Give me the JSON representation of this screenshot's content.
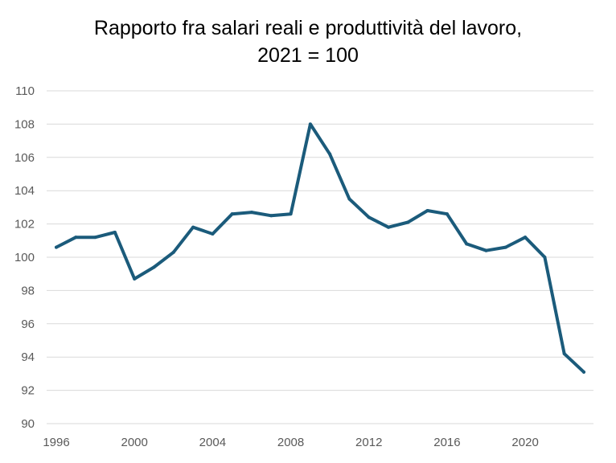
{
  "chart_data": {
    "type": "line",
    "title_lines": [
      "Rapporto fra salari reali e produttività del lavoro,",
      "2021 = 100"
    ],
    "xlabel": "",
    "ylabel": "",
    "xlim": [
      1996,
      2023
    ],
    "ylim": [
      90,
      110
    ],
    "y_ticks": [
      90,
      92,
      94,
      96,
      98,
      100,
      102,
      104,
      106,
      108,
      110
    ],
    "x_ticks": [
      1996,
      2000,
      2004,
      2008,
      2012,
      2016,
      2020
    ],
    "grid": "horizontal",
    "legend": "none",
    "series_color": "#1b5b7b",
    "x": [
      1996,
      1997,
      1998,
      1999,
      2000,
      2001,
      2002,
      2003,
      2004,
      2005,
      2006,
      2007,
      2008,
      2009,
      2010,
      2011,
      2012,
      2013,
      2014,
      2015,
      2016,
      2017,
      2018,
      2019,
      2020,
      2021,
      2022,
      2023
    ],
    "values": [
      100.6,
      101.2,
      101.2,
      101.5,
      98.7,
      99.4,
      100.3,
      101.8,
      101.4,
      102.6,
      102.7,
      102.5,
      102.6,
      108.0,
      106.2,
      103.5,
      102.4,
      101.8,
      102.1,
      102.8,
      102.6,
      100.8,
      100.4,
      100.6,
      101.2,
      100.0,
      94.2,
      93.1
    ]
  }
}
